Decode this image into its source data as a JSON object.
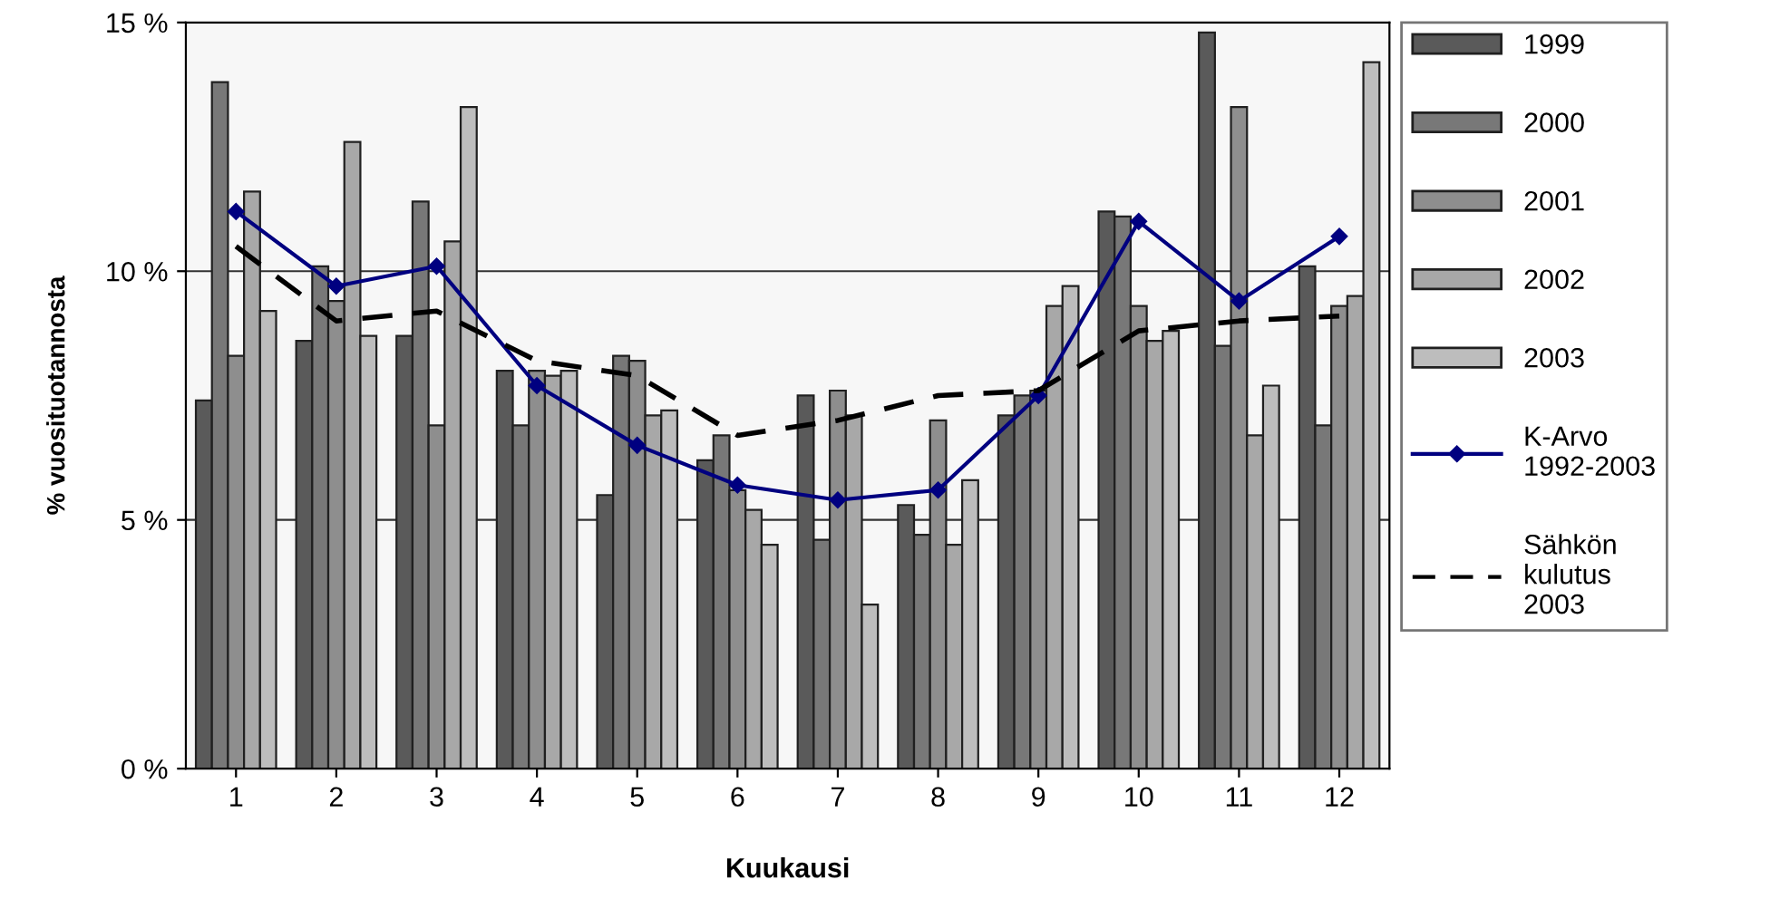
{
  "chart_data": {
    "type": "bar",
    "xlabel": "Kuukausi",
    "ylabel": "% vuosituotannosta",
    "categories": [
      "1",
      "2",
      "3",
      "4",
      "5",
      "6",
      "7",
      "8",
      "9",
      "10",
      "11",
      "12"
    ],
    "series": [
      {
        "name": "1999",
        "color": "#5a5a5a",
        "values": [
          7.4,
          8.6,
          8.7,
          8.0,
          5.5,
          6.2,
          7.5,
          5.3,
          7.1,
          11.2,
          14.8,
          10.1
        ]
      },
      {
        "name": "2000",
        "color": "#787878",
        "values": [
          13.8,
          10.1,
          11.4,
          6.9,
          8.3,
          6.7,
          4.6,
          4.7,
          7.5,
          11.1,
          8.5,
          6.9
        ]
      },
      {
        "name": "2001",
        "color": "#8e8e8e",
        "values": [
          8.3,
          9.4,
          6.9,
          8.0,
          8.2,
          5.6,
          7.6,
          7.0,
          7.6,
          9.3,
          13.3,
          9.3
        ]
      },
      {
        "name": "2002",
        "color": "#a8a8a8",
        "values": [
          11.6,
          12.6,
          10.6,
          7.9,
          7.1,
          5.2,
          7.1,
          4.5,
          9.3,
          8.6,
          6.7,
          9.5
        ]
      },
      {
        "name": "2003",
        "color": "#bdbdbd",
        "values": [
          9.2,
          8.7,
          13.3,
          8.0,
          7.2,
          4.5,
          3.3,
          5.8,
          9.7,
          8.8,
          7.7,
          14.2
        ]
      },
      {
        "name": "K-Arvo\n1992-2003",
        "type": "line",
        "color": "#000080",
        "marker": "diamond",
        "line_style": "solid",
        "values": [
          11.2,
          9.7,
          10.1,
          7.7,
          6.5,
          5.7,
          5.4,
          5.6,
          7.5,
          11.0,
          9.4,
          10.7
        ]
      },
      {
        "name": "Sähkön\nkulutus\n2003",
        "type": "line",
        "color": "#000000",
        "marker": "none",
        "line_style": "dashed",
        "values": [
          10.5,
          9.0,
          9.2,
          8.2,
          7.9,
          6.7,
          7.0,
          7.5,
          7.6,
          8.8,
          9.0,
          9.1
        ]
      }
    ],
    "ylim": [
      0,
      15
    ],
    "yticks": [
      {
        "value": 0,
        "label": "0 %"
      },
      {
        "value": 5,
        "label": "5 %"
      },
      {
        "value": 10,
        "label": "10 %"
      },
      {
        "value": 15,
        "label": "15 %"
      }
    ],
    "grid": "y",
    "legend": "right"
  }
}
